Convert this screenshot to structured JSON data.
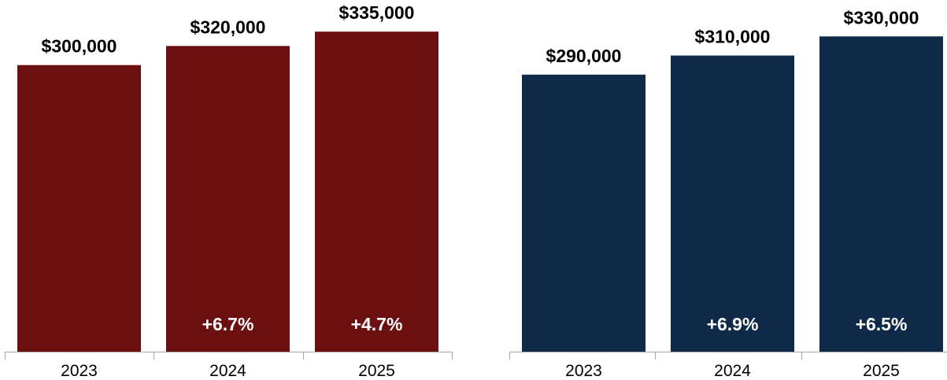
{
  "colors": {
    "left_bar": "#6b0f10",
    "right_bar": "#0f2a48",
    "axis": "#a6a6a6",
    "value_text": "#000000",
    "growth_text": "#ffffff"
  },
  "chart_data": [
    {
      "type": "bar",
      "title": "",
      "xlabel": "",
      "ylabel": "",
      "categories": [
        "2023",
        "2024",
        "2025"
      ],
      "values": [
        300000,
        320000,
        335000
      ],
      "value_labels": [
        "$300,000",
        "$320,000",
        "$335,000"
      ],
      "growth_labels": [
        "",
        "+6.7%",
        "+4.7%"
      ],
      "ylim": [
        0,
        350000
      ],
      "grid": false,
      "legend": "none",
      "color": "#6b0f10"
    },
    {
      "type": "bar",
      "title": "",
      "xlabel": "",
      "ylabel": "",
      "categories": [
        "2023",
        "2024",
        "2025"
      ],
      "values": [
        290000,
        310000,
        330000
      ],
      "value_labels": [
        "$290,000",
        "$310,000",
        "$330,000"
      ],
      "growth_labels": [
        "",
        "+6.9%",
        "+6.5%"
      ],
      "ylim": [
        0,
        350000
      ],
      "grid": false,
      "legend": "none",
      "color": "#0f2a48"
    }
  ]
}
